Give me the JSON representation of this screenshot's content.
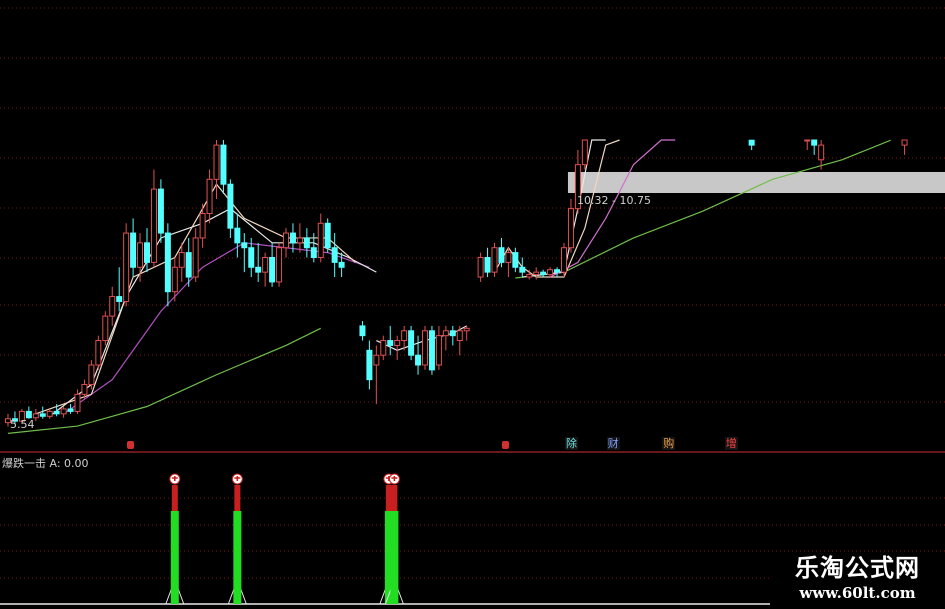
{
  "chart_data": [
    {
      "type": "candlestick",
      "panel": "main",
      "price_range": [
        5.06,
        14.27
      ],
      "grid": true,
      "colors": {
        "up": "#e05050",
        "down": "#54ffff",
        "grid": "#7a1515"
      },
      "annotations": {
        "low_label": "5.54",
        "band_label": "10.32 - 10.75",
        "band": [
          10.32,
          10.75
        ]
      },
      "candles": [
        [
          0,
          5.62,
          5.8,
          5.54,
          5.7
        ],
        [
          1,
          5.7,
          5.85,
          5.6,
          5.65
        ],
        [
          2,
          5.65,
          5.9,
          5.6,
          5.85
        ],
        [
          3,
          5.85,
          5.95,
          5.7,
          5.72
        ],
        [
          4,
          5.72,
          5.9,
          5.65,
          5.8
        ],
        [
          5,
          5.8,
          5.95,
          5.7,
          5.75
        ],
        [
          6,
          5.75,
          5.9,
          5.7,
          5.85
        ],
        [
          7,
          5.85,
          6.0,
          5.75,
          5.8
        ],
        [
          8,
          5.8,
          5.95,
          5.72,
          5.9
        ],
        [
          9,
          5.9,
          6.0,
          5.8,
          5.85
        ],
        [
          10,
          5.85,
          6.3,
          5.8,
          6.2
        ],
        [
          11,
          6.2,
          6.5,
          6.1,
          6.4
        ],
        [
          12,
          6.4,
          6.9,
          6.3,
          6.8
        ],
        [
          13,
          6.8,
          7.4,
          6.7,
          7.3
        ],
        [
          14,
          7.3,
          7.9,
          7.2,
          7.8
        ],
        [
          15,
          7.8,
          8.4,
          7.6,
          8.2
        ],
        [
          16,
          8.2,
          8.8,
          7.9,
          8.1
        ],
        [
          17,
          8.1,
          9.7,
          8.0,
          9.5
        ],
        [
          18,
          9.5,
          9.8,
          8.6,
          8.8
        ],
        [
          19,
          8.8,
          9.5,
          8.5,
          9.3
        ],
        [
          20,
          9.3,
          9.6,
          8.7,
          8.9
        ],
        [
          21,
          8.9,
          10.8,
          8.8,
          10.4
        ],
        [
          22,
          10.4,
          10.6,
          9.3,
          9.5
        ],
        [
          23,
          9.5,
          9.7,
          8.0,
          8.3
        ],
        [
          24,
          8.3,
          9.0,
          8.1,
          8.8
        ],
        [
          25,
          8.8,
          9.3,
          8.5,
          9.1
        ],
        [
          26,
          9.1,
          9.4,
          8.4,
          8.6
        ],
        [
          27,
          8.6,
          9.6,
          8.5,
          9.4
        ],
        [
          28,
          9.4,
          10.1,
          9.2,
          9.9
        ],
        [
          29,
          9.9,
          10.8,
          9.7,
          10.6
        ],
        [
          30,
          10.6,
          11.6,
          10.2,
          11.3
        ],
        [
          31,
          11.3,
          11.7,
          10.3,
          10.5
        ],
        [
          32,
          10.5,
          10.6,
          9.4,
          9.6
        ],
        [
          33,
          9.6,
          9.9,
          9.0,
          9.3
        ],
        [
          34,
          9.3,
          9.5,
          8.7,
          9.2
        ],
        [
          35,
          9.2,
          9.4,
          8.6,
          8.8
        ],
        [
          36,
          8.8,
          9.3,
          8.5,
          8.7
        ],
        [
          37,
          8.7,
          9.1,
          8.4,
          9.0
        ],
        [
          38,
          9.0,
          9.3,
          8.4,
          8.5
        ],
        [
          39,
          8.5,
          9.3,
          8.4,
          9.2
        ],
        [
          40,
          9.2,
          9.6,
          9.0,
          9.5
        ],
        [
          41,
          9.5,
          9.7,
          9.1,
          9.3
        ],
        [
          42,
          9.3,
          9.7,
          9.1,
          9.4
        ],
        [
          43,
          9.4,
          9.6,
          9.0,
          9.2
        ],
        [
          44,
          9.2,
          9.5,
          8.9,
          9.0
        ],
        [
          45,
          9.0,
          9.9,
          8.9,
          9.7
        ],
        [
          46,
          9.7,
          9.8,
          9.1,
          9.2
        ],
        [
          47,
          9.2,
          9.5,
          8.6,
          8.9
        ],
        [
          48,
          8.9,
          9.1,
          8.6,
          8.8
        ],
        [
          51,
          7.6,
          7.7,
          7.3,
          7.4
        ],
        [
          52,
          7.1,
          7.3,
          6.3,
          6.5
        ],
        [
          53,
          6.8,
          7.2,
          6.0,
          7.0
        ],
        [
          54,
          7.0,
          7.4,
          6.9,
          7.3
        ],
        [
          55,
          7.3,
          7.6,
          7.0,
          7.2
        ],
        [
          56,
          7.2,
          7.4,
          6.9,
          7.3
        ],
        [
          57,
          7.3,
          7.6,
          7.1,
          7.5
        ],
        [
          58,
          7.5,
          7.6,
          6.9,
          7.0
        ],
        [
          59,
          7.0,
          7.4,
          6.6,
          6.8
        ],
        [
          60,
          6.8,
          7.6,
          6.7,
          7.5
        ],
        [
          61,
          7.5,
          7.6,
          6.6,
          6.7
        ],
        [
          62,
          6.8,
          7.6,
          6.7,
          7.4
        ],
        [
          63,
          7.4,
          7.6,
          7.1,
          7.5
        ],
        [
          64,
          7.5,
          7.6,
          7.2,
          7.4
        ],
        [
          65,
          7.3,
          7.6,
          7.0,
          7.5
        ],
        [
          66,
          7.5,
          7.6,
          7.3,
          7.55
        ],
        [
          68,
          8.6,
          9.1,
          8.5,
          9.0
        ],
        [
          69,
          9.0,
          9.2,
          8.6,
          8.7
        ],
        [
          70,
          8.7,
          9.3,
          8.6,
          9.2
        ],
        [
          71,
          9.2,
          9.4,
          8.8,
          8.9
        ],
        [
          72,
          8.9,
          9.2,
          8.6,
          9.1
        ],
        [
          73,
          9.1,
          9.2,
          8.7,
          8.8
        ],
        [
          74,
          8.8,
          9.0,
          8.6,
          8.7
        ],
        [
          75,
          8.6,
          8.75,
          8.55,
          8.65
        ],
        [
          76,
          8.65,
          8.8,
          8.55,
          8.7
        ],
        [
          77,
          8.7,
          8.75,
          8.6,
          8.65
        ],
        [
          78,
          8.65,
          8.8,
          8.6,
          8.75
        ],
        [
          79,
          8.75,
          8.8,
          8.6,
          8.7
        ],
        [
          80,
          8.7,
          9.3,
          8.6,
          9.2
        ],
        [
          81,
          9.2,
          10.2,
          9.1,
          10.0
        ],
        [
          82,
          10.0,
          11.2,
          9.9,
          10.9
        ],
        [
          83,
          10.9,
          12.8,
          10.8,
          11.6
        ],
        [
          107,
          11.4,
          11.6,
          11.2,
          11.3
        ],
        [
          115,
          11.4,
          11.7,
          11.2,
          11.5
        ],
        [
          116,
          11.5,
          11.6,
          11.1,
          11.3
        ],
        [
          117,
          11.0,
          11.5,
          10.8,
          11.3
        ],
        [
          129,
          11.3,
          11.6,
          11.1,
          11.5
        ]
      ],
      "moving_averages": [
        {
          "color": "#6fbf4a",
          "points": [
            [
              0,
              5.4
            ],
            [
              10,
              5.55
            ],
            [
              20,
              5.95
            ],
            [
              30,
              6.6
            ],
            [
              40,
              7.2
            ],
            [
              45,
              7.55
            ]
          ]
        },
        {
          "color": "#6fbf4a",
          "points": [
            [
              73,
              8.58
            ],
            [
              80,
              8.7
            ],
            [
              90,
              9.4
            ],
            [
              100,
              9.95
            ],
            [
              110,
              10.6
            ],
            [
              120,
              11.0
            ],
            [
              127,
              11.4
            ]
          ]
        },
        {
          "color": "#b050c0",
          "points": [
            [
              8,
              5.8
            ],
            [
              15,
              6.5
            ],
            [
              22,
              7.9
            ],
            [
              28,
              8.8
            ],
            [
              34,
              9.3
            ],
            [
              40,
              9.2
            ],
            [
              46,
              9.1
            ],
            [
              52,
              8.8
            ]
          ]
        },
        {
          "color": "#e8e8e8",
          "points": [
            [
              6,
              5.75
            ],
            [
              12,
              6.4
            ],
            [
              17,
              8.2
            ],
            [
              22,
              9.4
            ],
            [
              28,
              9.7
            ],
            [
              32,
              10.0
            ],
            [
              38,
              9.3
            ],
            [
              44,
              9.3
            ],
            [
              49,
              9.0
            ],
            [
              53,
              8.7
            ]
          ]
        },
        {
          "color": "#f0d8c0",
          "points": [
            [
              4,
              5.8
            ],
            [
              12,
              6.2
            ],
            [
              18,
              8.6
            ],
            [
              24,
              9.0
            ],
            [
              30,
              10.5
            ],
            [
              34,
              9.8
            ],
            [
              40,
              9.4
            ],
            [
              46,
              9.4
            ],
            [
              50,
              8.9
            ]
          ]
        },
        {
          "color": "#e8e8e8",
          "points": [
            [
              53,
              7.3
            ],
            [
              56,
              7.1
            ],
            [
              60,
              7.3
            ],
            [
              64,
              7.45
            ],
            [
              66,
              7.6
            ]
          ]
        },
        {
          "color": "#f0d8c0",
          "points": [
            [
              70,
              8.7
            ],
            [
              72,
              9.2
            ],
            [
              74,
              8.8
            ],
            [
              76,
              8.6
            ],
            [
              80,
              8.6
            ],
            [
              83,
              9.6
            ],
            [
              86,
              11.3
            ],
            [
              88,
              12.1
            ]
          ]
        },
        {
          "color": "#e8e8e8",
          "points": [
            [
              74,
              8.6
            ],
            [
              80,
              8.7
            ],
            [
              82,
              10.0
            ],
            [
              84,
              11.6
            ],
            [
              86,
              12.2
            ]
          ]
        },
        {
          "color": "#d070d0",
          "points": [
            [
              78,
              8.6
            ],
            [
              82,
              8.9
            ],
            [
              86,
              9.8
            ],
            [
              90,
              10.9
            ],
            [
              94,
              11.8
            ],
            [
              96,
              12.1
            ]
          ]
        }
      ],
      "events": [
        {
          "index": 18,
          "label": "",
          "color": "#d03030"
        },
        {
          "index": 72,
          "label": "",
          "color": "#d03030"
        },
        {
          "index": 81,
          "label": "除",
          "color": "#6fe0e0"
        },
        {
          "index": 87,
          "label": "财",
          "color": "#80a0ff"
        },
        {
          "index": 95,
          "label": "购",
          "color": "#f0a040"
        },
        {
          "index": 104,
          "label": "增",
          "color": "#ff4040"
        }
      ]
    },
    {
      "type": "bar",
      "panel": "indicator",
      "title": "爆跌一击",
      "readout": "A: 0.00",
      "signals": [
        24,
        33,
        54.8,
        55.6
      ],
      "colors": {
        "bar": "#22dd22",
        "cap": "#c82020",
        "marker": "#ffffff"
      }
    }
  ],
  "watermark": {
    "title": "乐淘公式网",
    "url": "www.60lt.com"
  }
}
